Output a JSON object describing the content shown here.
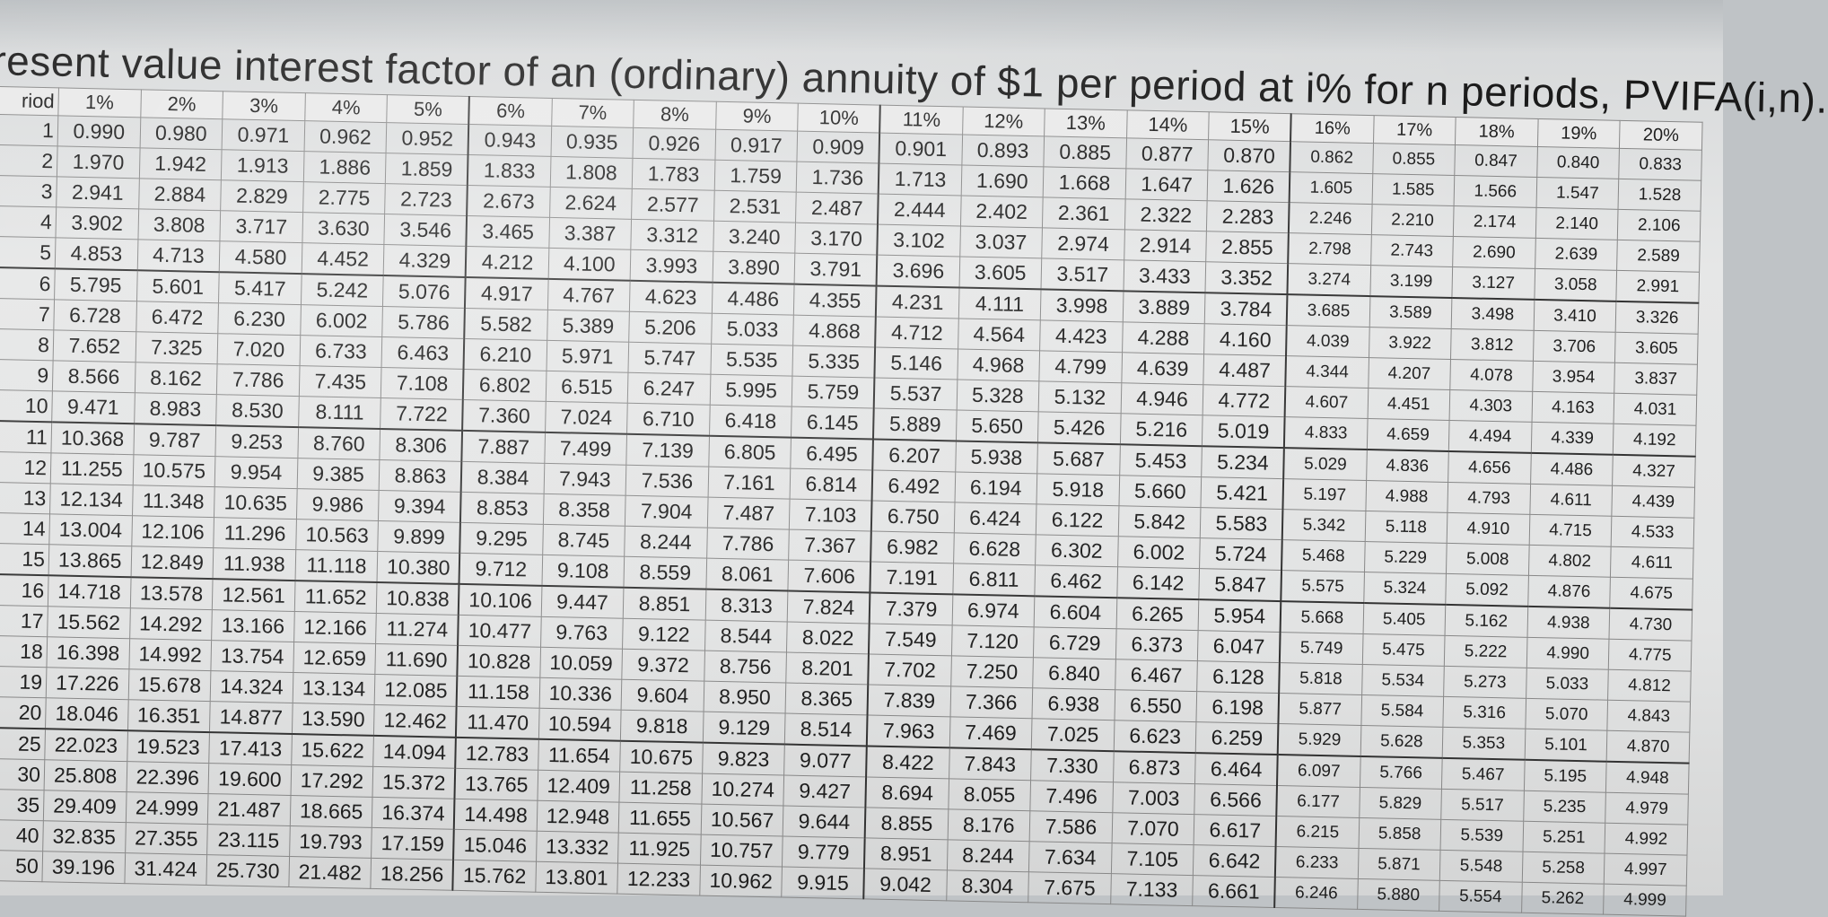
{
  "title": "resent value interest factor of an (ordinary) annuity of $1 per period at i% for n periods, PVIFA(i,n).",
  "header": {
    "period": "riod",
    "rates": [
      "1%",
      "2%",
      "3%",
      "4%",
      "5%",
      "6%",
      "7%",
      "8%",
      "9%",
      "10%",
      "11%",
      "12%",
      "13%",
      "14%",
      "15%",
      "16%",
      "17%",
      "18%",
      "19%",
      "20%"
    ]
  },
  "rows": [
    {
      "n": "1",
      "v": [
        "0.990",
        "0.980",
        "0.971",
        "0.962",
        "0.952",
        "0.943",
        "0.935",
        "0.926",
        "0.917",
        "0.909",
        "0.901",
        "0.893",
        "0.885",
        "0.877",
        "0.870",
        "0.862",
        "0.855",
        "0.847",
        "0.840",
        "0.833"
      ]
    },
    {
      "n": "2",
      "v": [
        "1.970",
        "1.942",
        "1.913",
        "1.886",
        "1.859",
        "1.833",
        "1.808",
        "1.783",
        "1.759",
        "1.736",
        "1.713",
        "1.690",
        "1.668",
        "1.647",
        "1.626",
        "1.605",
        "1.585",
        "1.566",
        "1.547",
        "1.528"
      ]
    },
    {
      "n": "3",
      "v": [
        "2.941",
        "2.884",
        "2.829",
        "2.775",
        "2.723",
        "2.673",
        "2.624",
        "2.577",
        "2.531",
        "2.487",
        "2.444",
        "2.402",
        "2.361",
        "2.322",
        "2.283",
        "2.246",
        "2.210",
        "2.174",
        "2.140",
        "2.106"
      ]
    },
    {
      "n": "4",
      "v": [
        "3.902",
        "3.808",
        "3.717",
        "3.630",
        "3.546",
        "3.465",
        "3.387",
        "3.312",
        "3.240",
        "3.170",
        "3.102",
        "3.037",
        "2.974",
        "2.914",
        "2.855",
        "2.798",
        "2.743",
        "2.690",
        "2.639",
        "2.589"
      ]
    },
    {
      "n": "5",
      "v": [
        "4.853",
        "4.713",
        "4.580",
        "4.452",
        "4.329",
        "4.212",
        "4.100",
        "3.993",
        "3.890",
        "3.791",
        "3.696",
        "3.605",
        "3.517",
        "3.433",
        "3.352",
        "3.274",
        "3.199",
        "3.127",
        "3.058",
        "2.991"
      ]
    },
    {
      "n": "6",
      "v": [
        "5.795",
        "5.601",
        "5.417",
        "5.242",
        "5.076",
        "4.917",
        "4.767",
        "4.623",
        "4.486",
        "4.355",
        "4.231",
        "4.111",
        "3.998",
        "3.889",
        "3.784",
        "3.685",
        "3.589",
        "3.498",
        "3.410",
        "3.326"
      ]
    },
    {
      "n": "7",
      "v": [
        "6.728",
        "6.472",
        "6.230",
        "6.002",
        "5.786",
        "5.582",
        "5.389",
        "5.206",
        "5.033",
        "4.868",
        "4.712",
        "4.564",
        "4.423",
        "4.288",
        "4.160",
        "4.039",
        "3.922",
        "3.812",
        "3.706",
        "3.605"
      ]
    },
    {
      "n": "8",
      "v": [
        "7.652",
        "7.325",
        "7.020",
        "6.733",
        "6.463",
        "6.210",
        "5.971",
        "5.747",
        "5.535",
        "5.335",
        "5.146",
        "4.968",
        "4.799",
        "4.639",
        "4.487",
        "4.344",
        "4.207",
        "4.078",
        "3.954",
        "3.837"
      ]
    },
    {
      "n": "9",
      "v": [
        "8.566",
        "8.162",
        "7.786",
        "7.435",
        "7.108",
        "6.802",
        "6.515",
        "6.247",
        "5.995",
        "5.759",
        "5.537",
        "5.328",
        "5.132",
        "4.946",
        "4.772",
        "4.607",
        "4.451",
        "4.303",
        "4.163",
        "4.031"
      ]
    },
    {
      "n": "10",
      "v": [
        "9.471",
        "8.983",
        "8.530",
        "8.111",
        "7.722",
        "7.360",
        "7.024",
        "6.710",
        "6.418",
        "6.145",
        "5.889",
        "5.650",
        "5.426",
        "5.216",
        "5.019",
        "4.833",
        "4.659",
        "4.494",
        "4.339",
        "4.192"
      ]
    },
    {
      "n": "11",
      "v": [
        "10.368",
        "9.787",
        "9.253",
        "8.760",
        "8.306",
        "7.887",
        "7.499",
        "7.139",
        "6.805",
        "6.495",
        "6.207",
        "5.938",
        "5.687",
        "5.453",
        "5.234",
        "5.029",
        "4.836",
        "4.656",
        "4.486",
        "4.327"
      ]
    },
    {
      "n": "12",
      "v": [
        "11.255",
        "10.575",
        "9.954",
        "9.385",
        "8.863",
        "8.384",
        "7.943",
        "7.536",
        "7.161",
        "6.814",
        "6.492",
        "6.194",
        "5.918",
        "5.660",
        "5.421",
        "5.197",
        "4.988",
        "4.793",
        "4.611",
        "4.439"
      ]
    },
    {
      "n": "13",
      "v": [
        "12.134",
        "11.348",
        "10.635",
        "9.986",
        "9.394",
        "8.853",
        "8.358",
        "7.904",
        "7.487",
        "7.103",
        "6.750",
        "6.424",
        "6.122",
        "5.842",
        "5.583",
        "5.342",
        "5.118",
        "4.910",
        "4.715",
        "4.533"
      ]
    },
    {
      "n": "14",
      "v": [
        "13.004",
        "12.106",
        "11.296",
        "10.563",
        "9.899",
        "9.295",
        "8.745",
        "8.244",
        "7.786",
        "7.367",
        "6.982",
        "6.628",
        "6.302",
        "6.002",
        "5.724",
        "5.468",
        "5.229",
        "5.008",
        "4.802",
        "4.611"
      ]
    },
    {
      "n": "15",
      "v": [
        "13.865",
        "12.849",
        "11.938",
        "11.118",
        "10.380",
        "9.712",
        "9.108",
        "8.559",
        "8.061",
        "7.606",
        "7.191",
        "6.811",
        "6.462",
        "6.142",
        "5.847",
        "5.575",
        "5.324",
        "5.092",
        "4.876",
        "4.675"
      ]
    },
    {
      "n": "16",
      "v": [
        "14.718",
        "13.578",
        "12.561",
        "11.652",
        "10.838",
        "10.106",
        "9.447",
        "8.851",
        "8.313",
        "7.824",
        "7.379",
        "6.974",
        "6.604",
        "6.265",
        "5.954",
        "5.668",
        "5.405",
        "5.162",
        "4.938",
        "4.730"
      ]
    },
    {
      "n": "17",
      "v": [
        "15.562",
        "14.292",
        "13.166",
        "12.166",
        "11.274",
        "10.477",
        "9.763",
        "9.122",
        "8.544",
        "8.022",
        "7.549",
        "7.120",
        "6.729",
        "6.373",
        "6.047",
        "5.749",
        "5.475",
        "5.222",
        "4.990",
        "4.775"
      ]
    },
    {
      "n": "18",
      "v": [
        "16.398",
        "14.992",
        "13.754",
        "12.659",
        "11.690",
        "10.828",
        "10.059",
        "9.372",
        "8.756",
        "8.201",
        "7.702",
        "7.250",
        "6.840",
        "6.467",
        "6.128",
        "5.818",
        "5.534",
        "5.273",
        "5.033",
        "4.812"
      ]
    },
    {
      "n": "19",
      "v": [
        "17.226",
        "15.678",
        "14.324",
        "13.134",
        "12.085",
        "11.158",
        "10.336",
        "9.604",
        "8.950",
        "8.365",
        "7.839",
        "7.366",
        "6.938",
        "6.550",
        "6.198",
        "5.877",
        "5.584",
        "5.316",
        "5.070",
        "4.843"
      ]
    },
    {
      "n": "20",
      "v": [
        "18.046",
        "16.351",
        "14.877",
        "13.590",
        "12.462",
        "11.470",
        "10.594",
        "9.818",
        "9.129",
        "8.514",
        "7.963",
        "7.469",
        "7.025",
        "6.623",
        "6.259",
        "5.929",
        "5.628",
        "5.353",
        "5.101",
        "4.870"
      ]
    },
    {
      "n": "25",
      "v": [
        "22.023",
        "19.523",
        "17.413",
        "15.622",
        "14.094",
        "12.783",
        "11.654",
        "10.675",
        "9.823",
        "9.077",
        "8.422",
        "7.843",
        "7.330",
        "6.873",
        "6.464",
        "6.097",
        "5.766",
        "5.467",
        "5.195",
        "4.948"
      ]
    },
    {
      "n": "30",
      "v": [
        "25.808",
        "22.396",
        "19.600",
        "17.292",
        "15.372",
        "13.765",
        "12.409",
        "11.258",
        "10.274",
        "9.427",
        "8.694",
        "8.055",
        "7.496",
        "7.003",
        "6.566",
        "6.177",
        "5.829",
        "5.517",
        "5.235",
        "4.979"
      ]
    },
    {
      "n": "35",
      "v": [
        "29.409",
        "24.999",
        "21.487",
        "18.665",
        "16.374",
        "14.498",
        "12.948",
        "11.655",
        "10.567",
        "9.644",
        "8.855",
        "8.176",
        "7.586",
        "7.070",
        "6.617",
        "6.215",
        "5.858",
        "5.539",
        "5.251",
        "4.992"
      ]
    },
    {
      "n": "40",
      "v": [
        "32.835",
        "27.355",
        "23.115",
        "19.793",
        "17.159",
        "15.046",
        "13.332",
        "11.925",
        "10.757",
        "9.779",
        "8.951",
        "8.244",
        "7.634",
        "7.105",
        "6.642",
        "6.233",
        "5.871",
        "5.548",
        "5.258",
        "4.997"
      ]
    },
    {
      "n": "50",
      "v": [
        "39.196",
        "31.424",
        "25.730",
        "21.482",
        "18.256",
        "15.762",
        "13.801",
        "12.233",
        "10.962",
        "9.915",
        "9.042",
        "8.304",
        "7.675",
        "7.133",
        "6.661",
        "6.246",
        "5.880",
        "5.554",
        "5.262",
        "4.999"
      ]
    }
  ]
}
